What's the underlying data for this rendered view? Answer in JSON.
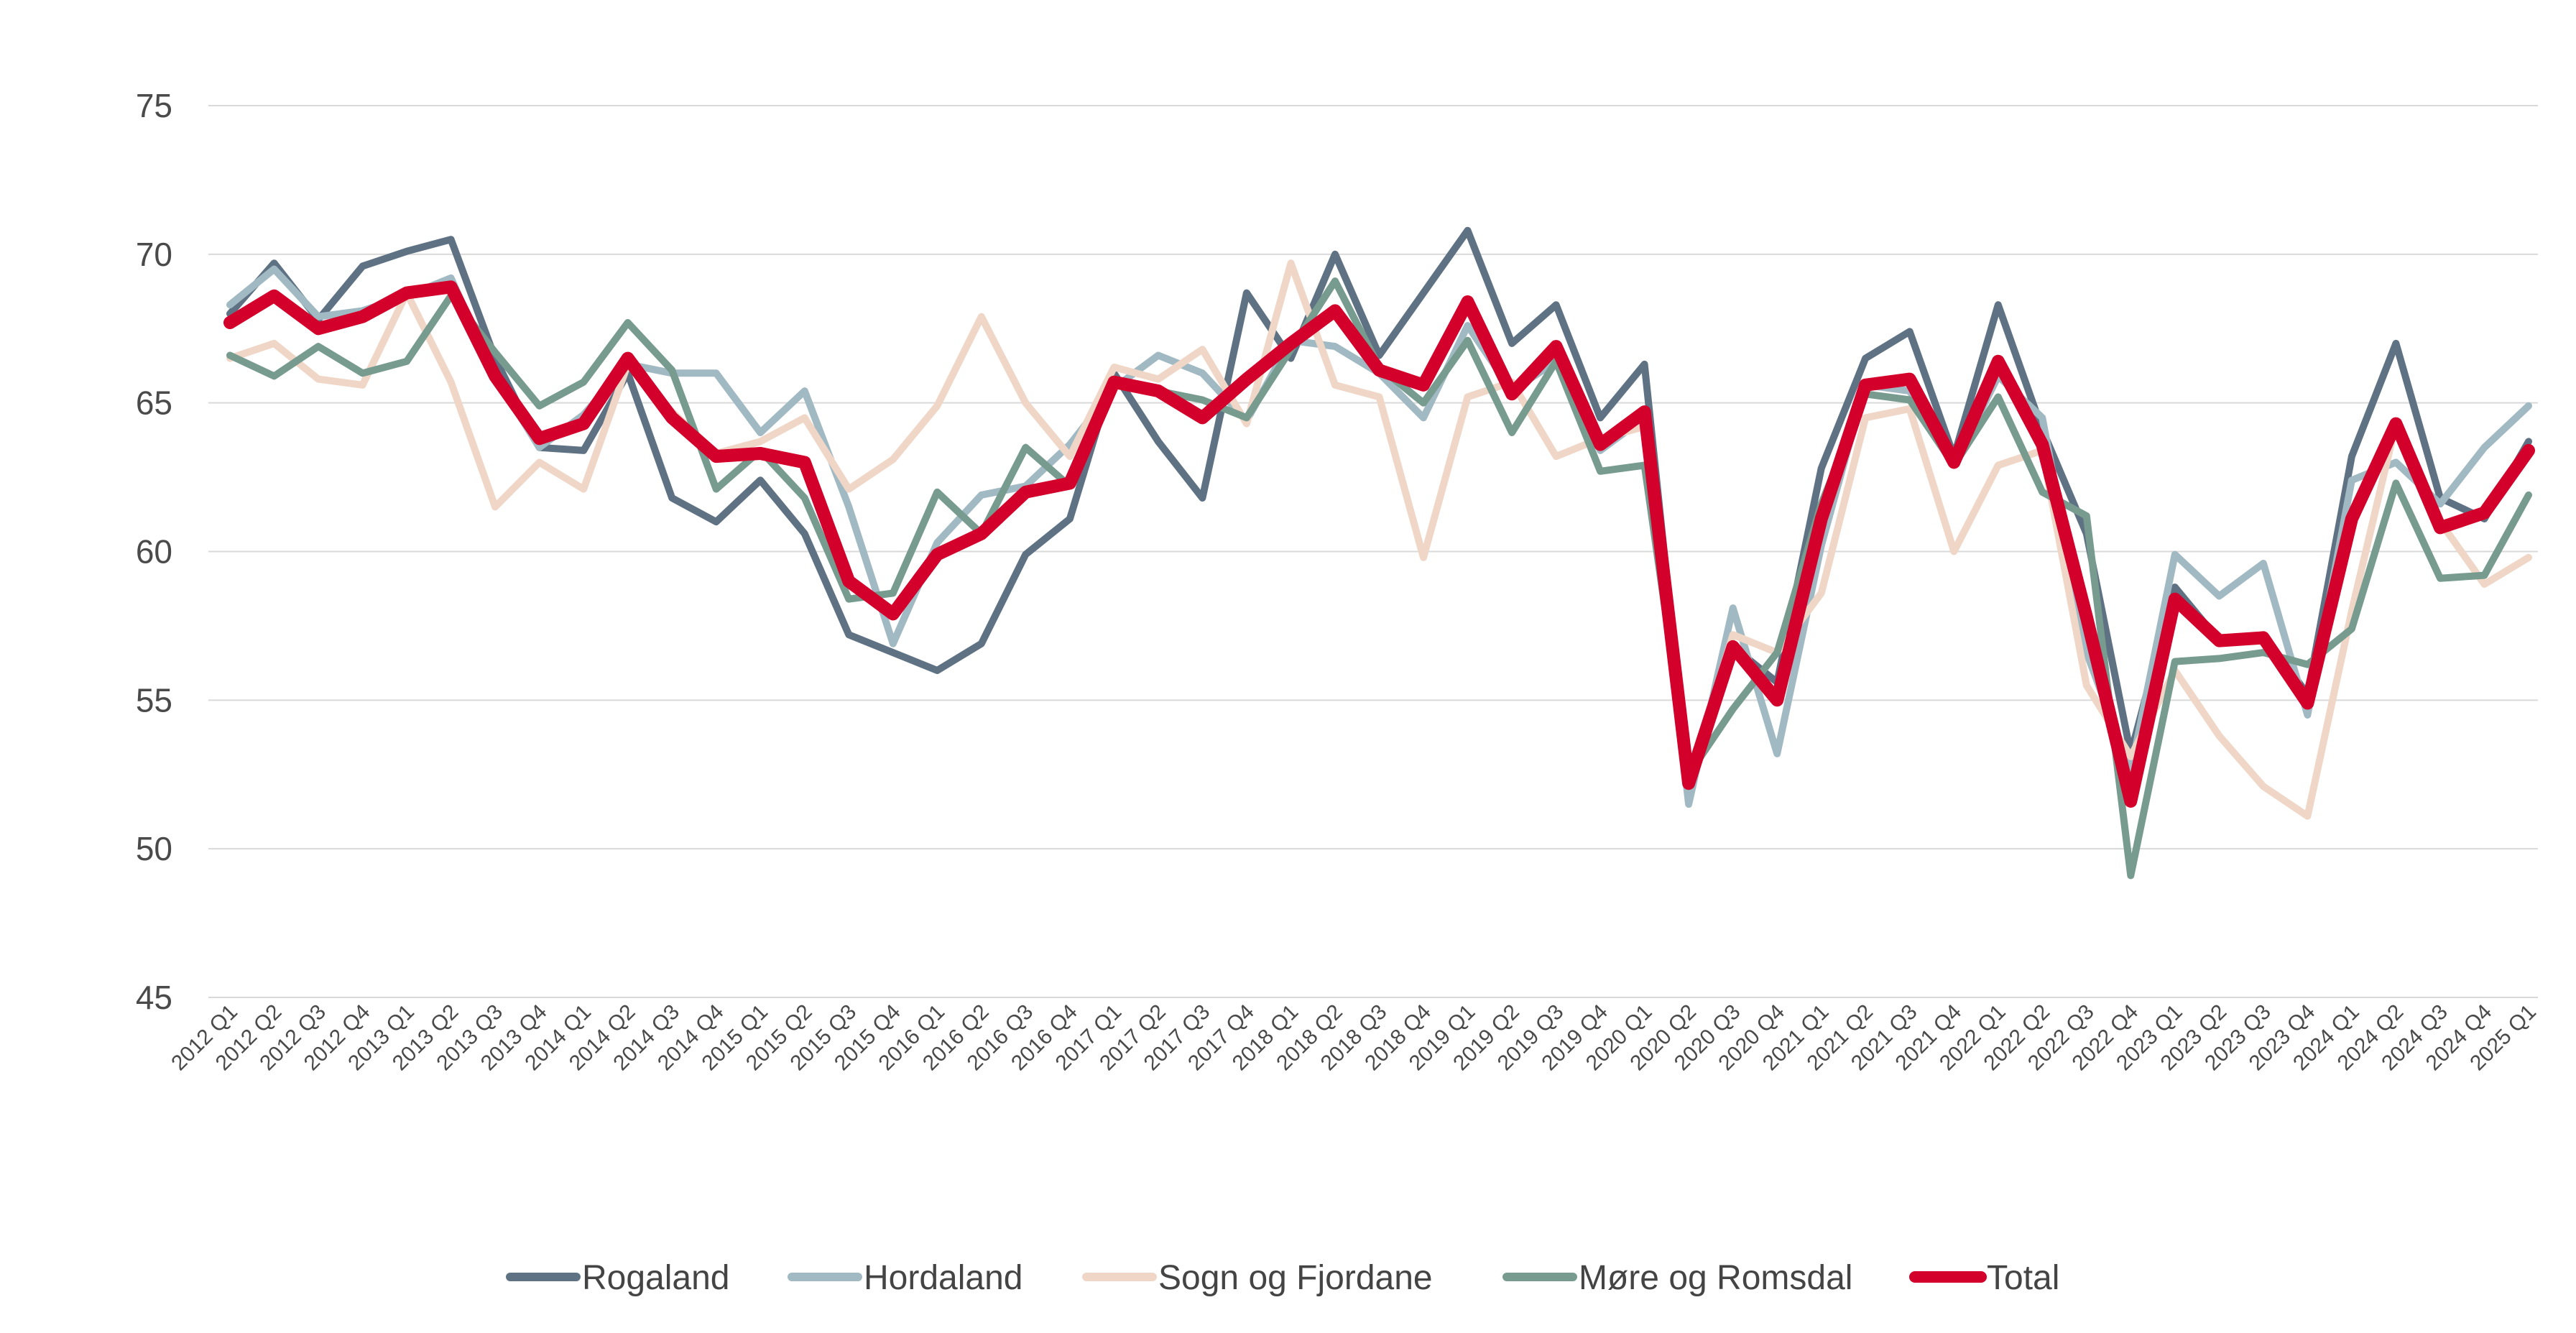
{
  "chart_data": {
    "type": "line",
    "title": "",
    "xlabel": "",
    "ylabel": "",
    "ylim": [
      45,
      75
    ],
    "yticks": [
      45,
      50,
      55,
      60,
      65,
      70,
      75
    ],
    "grid": "horizontal",
    "legend_position": "bottom",
    "x": [
      "2012 Q1",
      "2012 Q2",
      "2012 Q3",
      "2012 Q4",
      "2013 Q1",
      "2013 Q2",
      "2013 Q3",
      "2013 Q4",
      "2014 Q1",
      "2014 Q2",
      "2014 Q3",
      "2014 Q4",
      "2015 Q1",
      "2015 Q2",
      "2015 Q3",
      "2015 Q4",
      "2016 Q1",
      "2016 Q2",
      "2016 Q3",
      "2016 Q4",
      "2017 Q1",
      "2017 Q2",
      "2017 Q3",
      "2017 Q4",
      "2018 Q1",
      "2018 Q2",
      "2018 Q3",
      "2018 Q4",
      "2019 Q1",
      "2019 Q2",
      "2019 Q3",
      "2019 Q4",
      "2020 Q1",
      "2020 Q2",
      "2020 Q3",
      "2020 Q4",
      "2021 Q1",
      "2021 Q2",
      "2021 Q3",
      "2021 Q4",
      "2022 Q1",
      "2022 Q2",
      "2022 Q3",
      "2022 Q4",
      "2023 Q1",
      "2023 Q2",
      "2023 Q3",
      "2023 Q4",
      "2024 Q1",
      "2024 Q2",
      "2024 Q3",
      "2024 Q4",
      "2025 Q1"
    ],
    "series": [
      {
        "name": "Rogaland",
        "color": "#5f7284",
        "width": 10,
        "values": [
          68.0,
          69.7,
          67.8,
          69.6,
          70.1,
          70.5,
          66.5,
          63.5,
          63.4,
          66.0,
          61.8,
          61.0,
          62.4,
          60.6,
          57.2,
          56.6,
          56.0,
          56.9,
          59.9,
          61.1,
          66.0,
          63.7,
          61.8,
          68.7,
          66.5,
          70.0,
          66.6,
          68.7,
          70.8,
          67.0,
          68.3,
          64.5,
          66.3,
          52.1,
          56.8,
          55.6,
          62.8,
          66.5,
          67.4,
          63.2,
          68.3,
          64.1,
          60.6,
          53.2,
          58.8,
          57.0,
          57.2,
          55.2,
          63.2,
          67.0,
          61.8,
          61.1,
          63.7
        ]
      },
      {
        "name": "Hordaland",
        "color": "#a1b9c2",
        "width": 10,
        "values": [
          68.3,
          69.5,
          67.9,
          68.1,
          68.6,
          69.2,
          65.9,
          63.5,
          64.6,
          66.3,
          66.0,
          66.0,
          64.0,
          65.4,
          61.5,
          56.9,
          60.3,
          61.9,
          62.2,
          63.6,
          65.5,
          66.6,
          66.0,
          64.4,
          67.1,
          66.9,
          66.0,
          64.5,
          67.6,
          65.4,
          66.4,
          63.4,
          64.5,
          51.5,
          58.1,
          53.2,
          60.2,
          65.6,
          65.4,
          62.9,
          65.9,
          64.5,
          56.6,
          52.6,
          59.9,
          58.5,
          59.6,
          54.5,
          62.4,
          63.0,
          61.6,
          63.5,
          64.9
        ]
      },
      {
        "name": "Sogn og Fjordane",
        "color": "#f0d6c6",
        "width": 10,
        "values": [
          66.5,
          67.0,
          65.8,
          65.6,
          68.7,
          65.7,
          61.5,
          63.0,
          62.1,
          66.3,
          64.7,
          63.3,
          63.7,
          64.5,
          62.1,
          63.1,
          64.9,
          67.9,
          65.0,
          63.2,
          66.2,
          65.8,
          66.8,
          64.3,
          69.7,
          65.6,
          65.2,
          59.8,
          65.2,
          65.7,
          63.2,
          63.8,
          64.2,
          52.3,
          57.2,
          56.6,
          58.6,
          64.5,
          64.8,
          60.0,
          62.9,
          63.4,
          55.5,
          53.1,
          56.0,
          53.8,
          52.1,
          51.1,
          58.0,
          64.3,
          61.0,
          58.9,
          59.8
        ]
      },
      {
        "name": "Møre og Romsdal",
        "color": "#779b8f",
        "width": 10,
        "values": [
          66.6,
          65.9,
          66.9,
          66.0,
          66.4,
          68.6,
          66.7,
          64.9,
          65.7,
          67.7,
          66.1,
          62.1,
          63.4,
          61.8,
          58.4,
          58.6,
          62.0,
          60.6,
          63.5,
          62.2,
          65.8,
          65.4,
          65.1,
          64.5,
          66.8,
          69.1,
          66.2,
          65.0,
          67.1,
          64.0,
          66.4,
          62.7,
          62.9,
          52.5,
          54.7,
          56.6,
          61.6,
          65.3,
          65.1,
          62.9,
          65.2,
          62.0,
          61.2,
          49.1,
          56.3,
          56.4,
          56.6,
          56.2,
          57.4,
          62.3,
          59.1,
          59.2,
          61.9
        ]
      },
      {
        "name": "Total",
        "color": "#d3002b",
        "width": 18,
        "values": [
          67.7,
          68.6,
          67.5,
          67.9,
          68.7,
          68.9,
          65.9,
          63.8,
          64.3,
          66.5,
          64.5,
          63.2,
          63.3,
          63.0,
          59.0,
          57.9,
          59.9,
          60.6,
          62.0,
          62.3,
          65.7,
          65.4,
          64.5,
          65.8,
          67.0,
          68.1,
          66.1,
          65.6,
          68.4,
          65.3,
          66.9,
          63.6,
          64.7,
          52.2,
          56.8,
          55.0,
          61.1,
          65.6,
          65.8,
          63.0,
          66.4,
          63.6,
          57.8,
          51.6,
          58.4,
          57.0,
          57.1,
          54.9,
          61.1,
          64.3,
          60.8,
          61.3,
          63.4
        ]
      }
    ]
  }
}
